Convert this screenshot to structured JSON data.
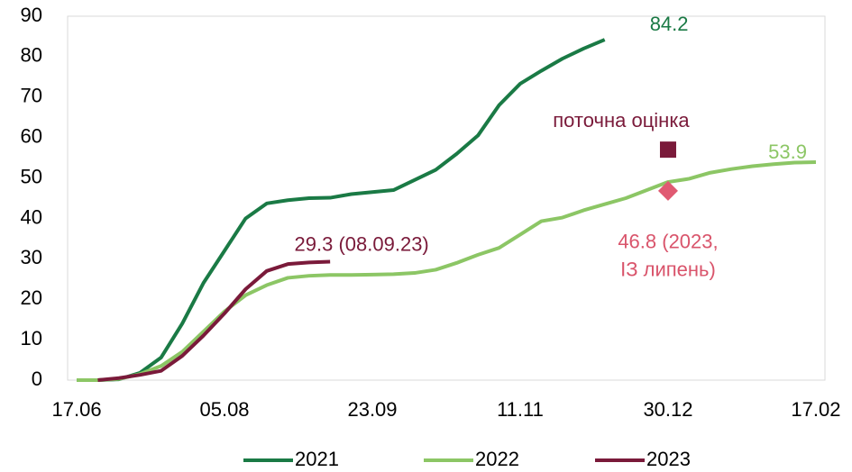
{
  "chart_data": {
    "type": "line",
    "x": [
      0,
      7,
      14,
      21,
      28,
      35,
      42,
      49,
      56,
      63,
      70,
      77,
      84,
      91,
      98,
      105,
      112,
      119,
      126,
      133,
      140,
      147,
      154,
      161,
      168,
      175,
      182,
      189,
      196,
      203,
      210,
      217,
      224,
      231,
      238,
      245
    ],
    "xlim": [
      -3,
      248
    ],
    "xticks": [
      {
        "value": 0,
        "label": "17.06"
      },
      {
        "value": 49,
        "label": "05.08"
      },
      {
        "value": 98,
        "label": "23.09"
      },
      {
        "value": 147,
        "label": "11.11"
      },
      {
        "value": 196,
        "label": "30.12"
      },
      {
        "value": 245,
        "label": "17.02"
      }
    ],
    "ylim": [
      0,
      90
    ],
    "yticks": [
      0,
      10,
      20,
      30,
      40,
      50,
      60,
      70,
      80,
      90
    ],
    "grid": false,
    "legend": "bottom",
    "series": [
      {
        "name": "2021",
        "color": "#1a7a45",
        "end_label": "84.2",
        "values": [
          0,
          0,
          0.2,
          1.8,
          5.6,
          14,
          24,
          32,
          40,
          43.7,
          44.5,
          45,
          45.1,
          46,
          46.5,
          47,
          49.5,
          52,
          56,
          60.5,
          68,
          73.3,
          76.5,
          79.5,
          82,
          84.2,
          null,
          null,
          null,
          null,
          null,
          null,
          null,
          null,
          null,
          null
        ]
      },
      {
        "name": "2022",
        "color": "#8cc665",
        "end_label": "53.9",
        "values": [
          0,
          0,
          0.3,
          1.5,
          3.5,
          7,
          12,
          17,
          21,
          23.5,
          25.3,
          25.8,
          26,
          26,
          26.1,
          26.2,
          26.5,
          27.3,
          29,
          31,
          32.7,
          36,
          39.3,
          40.2,
          42,
          43.5,
          45,
          47,
          49,
          49.8,
          51.3,
          52.2,
          52.9,
          53.4,
          53.8,
          53.9
        ]
      },
      {
        "name": "2023",
        "color": "#7a1a3a",
        "end_label": "29.3 (08.09.23)",
        "values": [
          null,
          0,
          0.5,
          1.3,
          2.3,
          6,
          11,
          16.5,
          22.5,
          27,
          28.7,
          29.1,
          29.3,
          null,
          null,
          null,
          null,
          null,
          null,
          null,
          null,
          null,
          null,
          null,
          null,
          null,
          null,
          null,
          null,
          null,
          null,
          null,
          null,
          null,
          null,
          null
        ]
      }
    ],
    "points": [
      {
        "label": [
          "поточна оцінка"
        ],
        "x": 196,
        "y": 57,
        "color": "#7a1a3a",
        "text_color": "#7a1a3a",
        "marker": "square"
      },
      {
        "label": [
          "46.8 (2023,",
          "ІЗ липень)"
        ],
        "x": 196,
        "y": 46.8,
        "color": "#e05a72",
        "text_color": "#d9546b",
        "marker": "diamond"
      }
    ]
  }
}
